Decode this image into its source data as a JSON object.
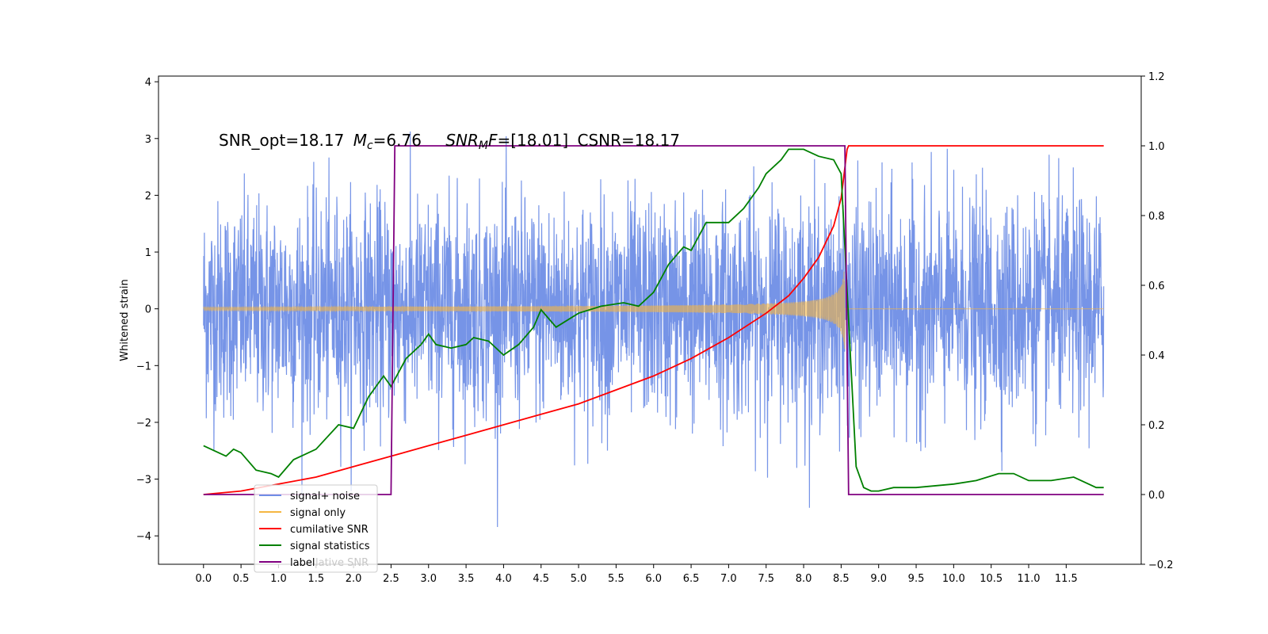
{
  "chart_data": {
    "type": "line",
    "title": "",
    "xlabel": "",
    "ylabel": "Whitened strain",
    "annotation": "SNR_opt=18.17 M_c=6.76    SNR_MF=[18.01] CSNR=18.17",
    "annotation_parts": {
      "snr_opt": "SNR_opt=18.17",
      "mc_symbol": "M",
      "mc_sub": "c",
      "mc_value": "=6.76",
      "mf_symbol": "SNR",
      "mf_sub": "M",
      "mf_f": "F",
      "mf_value": "=[18.01]",
      "csnr": "CSNR=18.17"
    },
    "xlim": [
      -0.6,
      12.5
    ],
    "ylim": [
      -4.5,
      4.1
    ],
    "ylim_right": [
      -0.2,
      1.2
    ],
    "x_ticks": [
      "0.0",
      "0.5",
      "1.0",
      "1.5",
      "2.0",
      "2.5",
      "3.0",
      "3.5",
      "4.0",
      "4.5",
      "5.0",
      "5.5",
      "6.0",
      "6.5",
      "7.0",
      "7.5",
      "8.0",
      "8.5",
      "9.0",
      "9.5",
      "10.0",
      "10.5",
      "11.0",
      "11.5"
    ],
    "y_ticks_left": [
      "−4",
      "−3",
      "−2",
      "−1",
      "0",
      "1",
      "2",
      "3",
      "4"
    ],
    "y_ticks_right": [
      "−0.2",
      "0.0",
      "0.2",
      "0.4",
      "0.6",
      "0.8",
      "1.0",
      "1.2"
    ],
    "grid": false,
    "legend_position": "bottom-left",
    "series": [
      {
        "name": "signal+ noise",
        "axis": "left",
        "color": "#6f8ee6",
        "description": "white noise spanning ~[-2.5, 3.7] plus signal, x 0 to 12"
      },
      {
        "name": "signal only",
        "axis": "left",
        "color": "#f5b642",
        "description": "chirp, amplitude grows from 0 to ~2.9 at x=8.55 then zero"
      },
      {
        "name": "cumilative SNR",
        "axis": "right",
        "color": "#ff0000",
        "x": [
          0.0,
          0.5,
          1.0,
          1.5,
          2.0,
          2.5,
          3.0,
          3.5,
          4.0,
          4.5,
          5.0,
          5.5,
          6.0,
          6.5,
          7.0,
          7.5,
          7.8,
          8.0,
          8.2,
          8.4,
          8.5,
          8.58,
          8.6,
          12.0
        ],
        "y": [
          0.0,
          0.01,
          0.03,
          0.05,
          0.08,
          0.11,
          0.14,
          0.17,
          0.2,
          0.23,
          0.26,
          0.3,
          0.34,
          0.39,
          0.45,
          0.52,
          0.57,
          0.62,
          0.68,
          0.77,
          0.85,
          0.99,
          1.0,
          1.0
        ]
      },
      {
        "name": "signal statistics",
        "axis": "right",
        "color": "#008000",
        "x": [
          0.0,
          0.2,
          0.3,
          0.4,
          0.5,
          0.7,
          0.9,
          1.0,
          1.2,
          1.5,
          1.8,
          2.0,
          2.2,
          2.4,
          2.5,
          2.7,
          2.9,
          3.0,
          3.1,
          3.3,
          3.5,
          3.6,
          3.8,
          4.0,
          4.2,
          4.4,
          4.5,
          4.7,
          5.0,
          5.3,
          5.6,
          5.8,
          6.0,
          6.2,
          6.4,
          6.5,
          6.7,
          6.9,
          7.0,
          7.2,
          7.4,
          7.5,
          7.7,
          7.8,
          8.0,
          8.2,
          8.4,
          8.5,
          8.6,
          8.7,
          8.8,
          8.9,
          9.0,
          9.2,
          9.5,
          10.0,
          10.3,
          10.6,
          10.8,
          11.0,
          11.3,
          11.6,
          11.9,
          12.0
        ],
        "y": [
          0.14,
          0.12,
          0.11,
          0.13,
          0.12,
          0.07,
          0.06,
          0.05,
          0.1,
          0.13,
          0.2,
          0.19,
          0.28,
          0.34,
          0.31,
          0.39,
          0.43,
          0.46,
          0.43,
          0.42,
          0.43,
          0.45,
          0.44,
          0.4,
          0.43,
          0.48,
          0.53,
          0.48,
          0.52,
          0.54,
          0.55,
          0.54,
          0.58,
          0.66,
          0.71,
          0.7,
          0.78,
          0.78,
          0.78,
          0.82,
          0.88,
          0.92,
          0.96,
          0.99,
          0.99,
          0.97,
          0.96,
          0.92,
          0.5,
          0.08,
          0.02,
          0.01,
          0.01,
          0.02,
          0.02,
          0.03,
          0.04,
          0.06,
          0.06,
          0.04,
          0.04,
          0.05,
          0.02,
          0.02
        ]
      },
      {
        "name": "label",
        "axis": "right",
        "color": "#800080",
        "x": [
          0.0,
          2.5,
          2.55,
          8.55,
          8.6,
          12.0
        ],
        "y": [
          0.0,
          0.0,
          1.0,
          1.0,
          0.0,
          0.0
        ]
      }
    ],
    "legend_entries": [
      "signal+ noise",
      "signal only",
      "cumilative SNR",
      "signal statistics",
      "label"
    ],
    "legend_ghost_text": "lative SNR"
  }
}
